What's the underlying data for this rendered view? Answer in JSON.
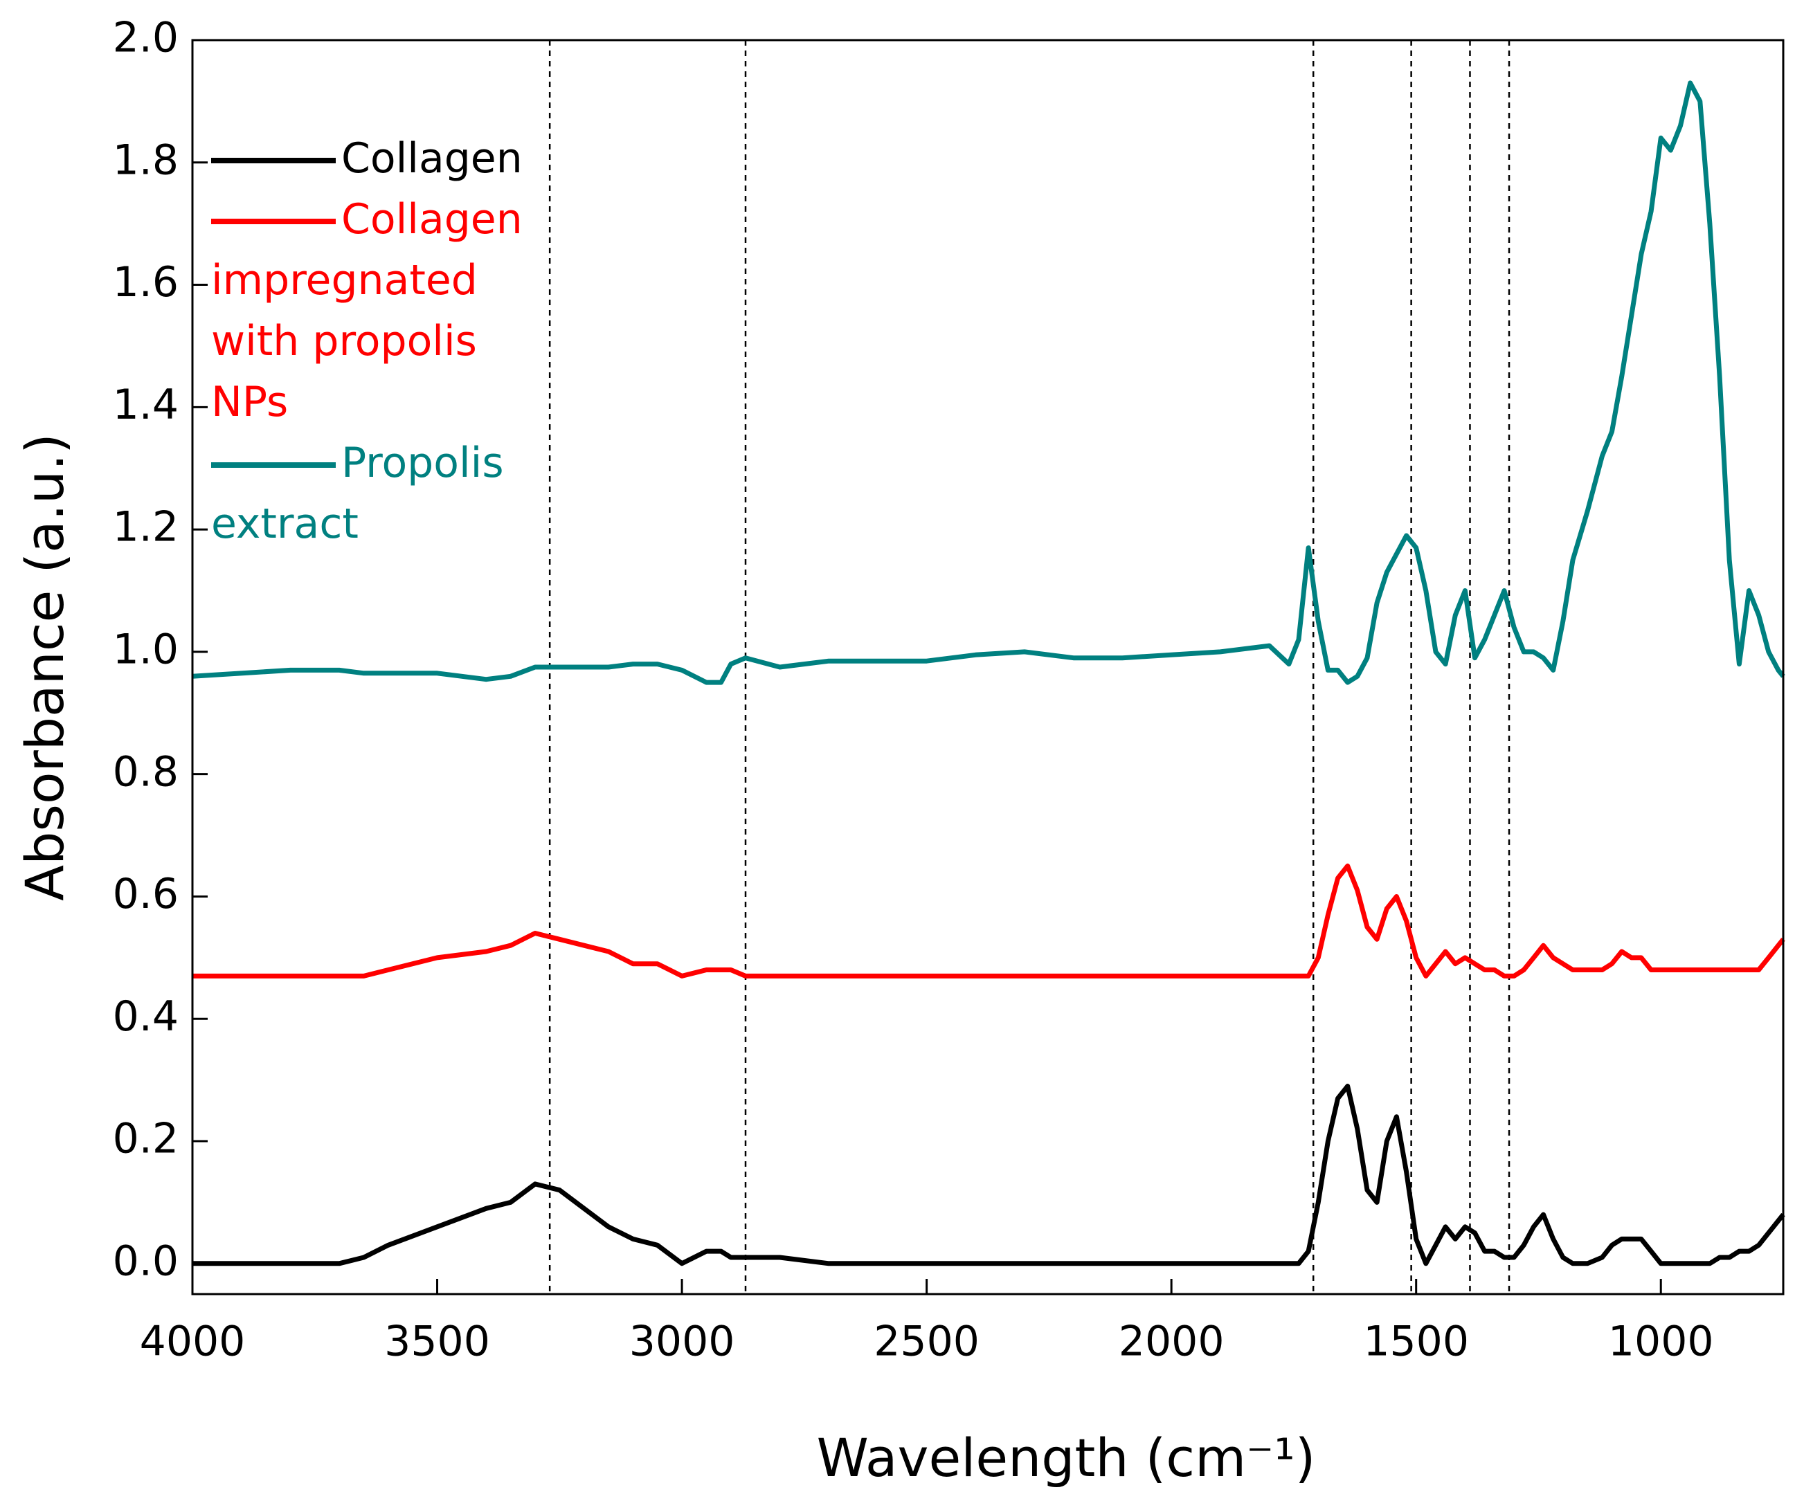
{
  "chart_data": {
    "type": "line",
    "xlabel": "Wavelength (cm⁻¹)",
    "ylabel": "Absorbance (a.u.)",
    "x": [
      4000,
      3800,
      3700,
      3650,
      3600,
      3500,
      3400,
      3350,
      3300,
      3250,
      3200,
      3150,
      3100,
      3050,
      3000,
      2950,
      2920,
      2900,
      2870,
      2800,
      2700,
      2600,
      2500,
      2400,
      2300,
      2200,
      2100,
      2000,
      1900,
      1800,
      1760,
      1740,
      1720,
      1700,
      1680,
      1660,
      1640,
      1620,
      1600,
      1580,
      1560,
      1540,
      1520,
      1500,
      1480,
      1460,
      1440,
      1420,
      1400,
      1380,
      1360,
      1340,
      1320,
      1300,
      1280,
      1260,
      1240,
      1220,
      1200,
      1180,
      1150,
      1120,
      1100,
      1080,
      1060,
      1040,
      1020,
      1000,
      980,
      960,
      940,
      920,
      900,
      880,
      860,
      840,
      820,
      800,
      780,
      760,
      750
    ],
    "series": [
      {
        "name": "Collagen",
        "color": "#000000",
        "values": [
          0,
          0,
          0,
          0.01,
          0.03,
          0.06,
          0.09,
          0.1,
          0.13,
          0.12,
          0.09,
          0.06,
          0.04,
          0.03,
          0,
          0.02,
          0.02,
          0.01,
          0.01,
          0.01,
          0,
          0,
          0,
          0,
          0,
          0,
          0,
          0,
          0,
          0,
          0,
          0,
          0.02,
          0.1,
          0.2,
          0.27,
          0.29,
          0.22,
          0.12,
          0.1,
          0.2,
          0.24,
          0.15,
          0.04,
          0,
          0.03,
          0.06,
          0.04,
          0.06,
          0.05,
          0.02,
          0.02,
          0.01,
          0.01,
          0.03,
          0.06,
          0.08,
          0.04,
          0.01,
          0,
          0,
          0.01,
          0.03,
          0.04,
          0.04,
          0.04,
          0.02,
          0,
          0,
          0,
          0,
          0,
          0,
          0.01,
          0.01,
          0.02,
          0.02,
          0.03,
          0.05,
          0.07,
          0.08
        ]
      },
      {
        "name": "Collagen impregnated with propolis NPs",
        "color": "#ff0000",
        "values": [
          0.47,
          0.47,
          0.47,
          0.47,
          0.48,
          0.5,
          0.51,
          0.52,
          0.54,
          0.53,
          0.52,
          0.51,
          0.49,
          0.49,
          0.47,
          0.48,
          0.48,
          0.48,
          0.47,
          0.47,
          0.47,
          0.47,
          0.47,
          0.47,
          0.47,
          0.47,
          0.47,
          0.47,
          0.47,
          0.47,
          0.47,
          0.47,
          0.47,
          0.5,
          0.57,
          0.63,
          0.65,
          0.61,
          0.55,
          0.53,
          0.58,
          0.6,
          0.56,
          0.5,
          0.47,
          0.49,
          0.51,
          0.49,
          0.5,
          0.49,
          0.48,
          0.48,
          0.47,
          0.47,
          0.48,
          0.5,
          0.52,
          0.5,
          0.49,
          0.48,
          0.48,
          0.48,
          0.49,
          0.51,
          0.5,
          0.5,
          0.48,
          0.48,
          0.48,
          0.48,
          0.48,
          0.48,
          0.48,
          0.48,
          0.48,
          0.48,
          0.48,
          0.48,
          0.5,
          0.52,
          0.53
        ]
      },
      {
        "name": "Propolis extract",
        "color": "#008080",
        "values": [
          0.96,
          0.97,
          0.97,
          0.965,
          0.965,
          0.965,
          0.955,
          0.96,
          0.975,
          0.975,
          0.975,
          0.975,
          0.98,
          0.98,
          0.97,
          0.95,
          0.95,
          0.98,
          0.99,
          0.975,
          0.985,
          0.985,
          0.985,
          0.995,
          1.0,
          0.99,
          0.99,
          0.995,
          1.0,
          1.01,
          0.98,
          1.02,
          1.17,
          1.05,
          0.97,
          0.97,
          0.95,
          0.96,
          0.99,
          1.08,
          1.13,
          1.16,
          1.19,
          1.17,
          1.1,
          1.0,
          0.98,
          1.06,
          1.1,
          0.99,
          1.02,
          1.06,
          1.1,
          1.04,
          1.0,
          1.0,
          0.99,
          0.97,
          1.05,
          1.15,
          1.23,
          1.32,
          1.36,
          1.45,
          1.55,
          1.65,
          1.72,
          1.84,
          1.82,
          1.86,
          1.93,
          1.9,
          1.7,
          1.45,
          1.15,
          0.98,
          1.1,
          1.06,
          1.0,
          0.97,
          0.96
        ]
      }
    ],
    "reference_lines": [
      3270,
      2870,
      1710,
      1510,
      1390,
      1310
    ],
    "xlim": [
      4000,
      750
    ],
    "xticks": [
      4000,
      3500,
      3000,
      2500,
      2000,
      1500,
      1000
    ],
    "ylim": [
      -0.05,
      2.0
    ],
    "yticks": [
      {
        "value": 0,
        "label": "0.0"
      },
      0.2,
      0.4,
      0.6,
      0.8,
      {
        "value": 1,
        "label": "1.0"
      },
      1.2,
      1.4,
      1.6,
      1.8,
      {
        "value": 2,
        "label": "2.0"
      }
    ],
    "grid": false,
    "legend": "upper left"
  }
}
